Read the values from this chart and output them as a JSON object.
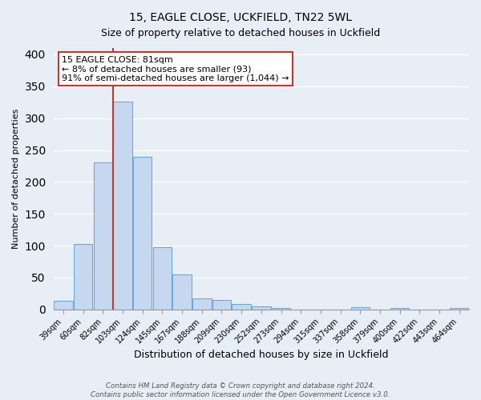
{
  "title": "15, EAGLE CLOSE, UCKFIELD, TN22 5WL",
  "subtitle": "Size of property relative to detached houses in Uckfield",
  "xlabel": "Distribution of detached houses by size in Uckfield",
  "ylabel": "Number of detached properties",
  "bar_labels": [
    "39sqm",
    "60sqm",
    "82sqm",
    "103sqm",
    "124sqm",
    "145sqm",
    "167sqm",
    "188sqm",
    "209sqm",
    "230sqm",
    "252sqm",
    "273sqm",
    "294sqm",
    "315sqm",
    "337sqm",
    "358sqm",
    "379sqm",
    "400sqm",
    "422sqm",
    "443sqm",
    "464sqm"
  ],
  "bar_values": [
    13,
    102,
    230,
    326,
    239,
    97,
    55,
    17,
    15,
    9,
    5,
    2,
    0,
    0,
    0,
    3,
    0,
    2,
    0,
    0,
    2
  ],
  "bar_color": "#c5d8f0",
  "bar_edge_color": "#6aaad4",
  "ylim": [
    0,
    410
  ],
  "yticks": [
    0,
    50,
    100,
    150,
    200,
    250,
    300,
    350,
    400
  ],
  "vline_index": 2,
  "vline_color": "#c0392b",
  "annotation_text": "15 EAGLE CLOSE: 81sqm\n← 8% of detached houses are smaller (93)\n91% of semi-detached houses are larger (1,044) →",
  "annotation_box_color": "#ffffff",
  "annotation_box_edge_color": "#c0392b",
  "footer_line1": "Contains HM Land Registry data © Crown copyright and database right 2024.",
  "footer_line2": "Contains public sector information licensed under the Open Government Licence v3.0.",
  "bg_color": "#e8eef6",
  "plot_bg_color": "#e8eef6",
  "grid_color": "#ffffff",
  "title_fontsize": 10,
  "ylabel_fontsize": 8,
  "xlabel_fontsize": 9,
  "tick_fontsize": 7,
  "ann_fontsize": 8
}
